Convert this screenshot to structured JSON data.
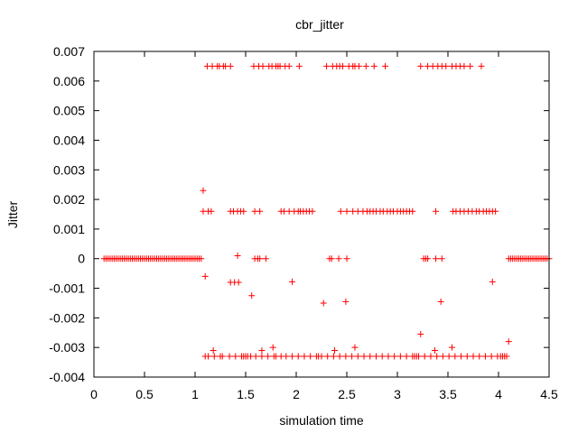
{
  "chart_data": {
    "type": "scatter",
    "title": "cbr_jitter",
    "xlabel": "simulation time",
    "ylabel": "Jitter",
    "xlim": [
      0,
      4.5
    ],
    "ylim": [
      -0.004,
      0.007
    ],
    "xticks": [
      "0",
      "0.5",
      "1",
      "1.5",
      "2",
      "2.5",
      "3",
      "3.5",
      "4",
      "4.5"
    ],
    "xtick_values": [
      0,
      0.5,
      1,
      1.5,
      2,
      2.5,
      3,
      3.5,
      4,
      4.5
    ],
    "yticks": [
      "-0.004",
      "-0.003",
      "-0.002",
      "-0.001",
      "0",
      "0.001",
      "0.002",
      "0.003",
      "0.004",
      "0.005",
      "0.006",
      "0.007"
    ],
    "ytick_values": [
      -0.004,
      -0.003,
      -0.002,
      -0.001,
      0,
      0.001,
      0.002,
      0.003,
      0.004,
      0.005,
      0.006,
      0.007
    ],
    "grid": false,
    "marker": "+",
    "color": "#ff0000",
    "series": [
      {
        "points": [
          [
            0.1,
            0
          ],
          [
            0.12,
            0
          ],
          [
            0.14,
            0
          ],
          [
            0.16,
            0
          ],
          [
            0.18,
            0
          ],
          [
            0.2,
            0
          ],
          [
            0.22,
            0
          ],
          [
            0.24,
            0
          ],
          [
            0.26,
            0
          ],
          [
            0.28,
            0
          ],
          [
            0.3,
            0
          ],
          [
            0.32,
            0
          ],
          [
            0.34,
            0
          ],
          [
            0.36,
            0
          ],
          [
            0.38,
            0
          ],
          [
            0.4,
            0
          ],
          [
            0.42,
            0
          ],
          [
            0.44,
            0
          ],
          [
            0.46,
            0
          ],
          [
            0.48,
            0
          ],
          [
            0.5,
            0
          ],
          [
            0.52,
            0
          ],
          [
            0.54,
            0
          ],
          [
            0.56,
            0
          ],
          [
            0.58,
            0
          ],
          [
            0.6,
            0
          ],
          [
            0.62,
            0
          ],
          [
            0.64,
            0
          ],
          [
            0.66,
            0
          ],
          [
            0.68,
            0
          ],
          [
            0.7,
            0
          ],
          [
            0.72,
            0
          ],
          [
            0.74,
            0
          ],
          [
            0.76,
            0
          ],
          [
            0.78,
            0
          ],
          [
            0.8,
            0
          ],
          [
            0.82,
            0
          ],
          [
            0.84,
            0
          ],
          [
            0.86,
            0
          ],
          [
            0.88,
            0
          ],
          [
            0.9,
            0
          ],
          [
            0.92,
            0
          ],
          [
            0.94,
            0
          ],
          [
            0.96,
            0
          ],
          [
            0.98,
            0
          ],
          [
            1.0,
            0
          ],
          [
            1.02,
            0
          ],
          [
            1.04,
            0
          ],
          [
            1.06,
            0
          ],
          [
            1.08,
            0.0023
          ],
          [
            1.08,
            0.0016
          ],
          [
            1.1,
            -0.0006
          ],
          [
            1.13,
            0.0016
          ],
          [
            1.16,
            0.0016
          ],
          [
            1.12,
            0.0065
          ],
          [
            1.17,
            0.0065
          ],
          [
            1.22,
            0.0065
          ],
          [
            1.24,
            0.0065
          ],
          [
            1.28,
            0.0065
          ],
          [
            1.3,
            0.0065
          ],
          [
            1.35,
            0.0065
          ],
          [
            1.35,
            0.0016
          ],
          [
            1.38,
            0.0016
          ],
          [
            1.42,
            0.0016
          ],
          [
            1.45,
            0.0016
          ],
          [
            1.48,
            0.0016
          ],
          [
            1.42,
            0.0001
          ],
          [
            1.35,
            -0.0008
          ],
          [
            1.39,
            -0.0008
          ],
          [
            1.43,
            -0.0008
          ],
          [
            1.56,
            -0.00125
          ],
          [
            1.59,
            0
          ],
          [
            1.62,
            0
          ],
          [
            1.64,
            0
          ],
          [
            1.7,
            0
          ],
          [
            1.58,
            0.0065
          ],
          [
            1.63,
            0.0065
          ],
          [
            1.67,
            0.0065
          ],
          [
            1.73,
            0.0065
          ],
          [
            1.76,
            0.0065
          ],
          [
            1.8,
            0.0065
          ],
          [
            1.82,
            0.0065
          ],
          [
            1.84,
            0.0065
          ],
          [
            1.89,
            0.0065
          ],
          [
            1.93,
            0.0065
          ],
          [
            2.03,
            0.0065
          ],
          [
            1.59,
            0.0016
          ],
          [
            1.64,
            0.0016
          ],
          [
            1.85,
            0.0016
          ],
          [
            1.88,
            0.0016
          ],
          [
            1.93,
            0.0016
          ],
          [
            1.98,
            0.0016
          ],
          [
            2.02,
            0.0016
          ],
          [
            2.04,
            0.0016
          ],
          [
            2.07,
            0.0016
          ],
          [
            2.1,
            0.0016
          ],
          [
            2.13,
            0.0016
          ],
          [
            2.16,
            0.0016
          ],
          [
            1.96,
            -0.00078
          ],
          [
            2.27,
            -0.0015
          ],
          [
            2.49,
            -0.00145
          ],
          [
            2.3,
            0.0065
          ],
          [
            2.36,
            0.0065
          ],
          [
            2.4,
            0.0065
          ],
          [
            2.43,
            0.0065
          ],
          [
            2.46,
            0.0065
          ],
          [
            2.52,
            0.0065
          ],
          [
            2.56,
            0.0065
          ],
          [
            2.58,
            0.0065
          ],
          [
            2.62,
            0.0065
          ],
          [
            2.69,
            0.0065
          ],
          [
            2.77,
            0.0065
          ],
          [
            2.88,
            0.0065
          ],
          [
            2.33,
            0
          ],
          [
            2.35,
            0
          ],
          [
            2.42,
            0
          ],
          [
            2.5,
            0
          ],
          [
            2.44,
            0.0016
          ],
          [
            2.5,
            0.0016
          ],
          [
            2.56,
            0.0016
          ],
          [
            2.61,
            0.0016
          ],
          [
            2.66,
            0.0016
          ],
          [
            2.7,
            0.0016
          ],
          [
            2.73,
            0.0016
          ],
          [
            2.76,
            0.0016
          ],
          [
            2.79,
            0.0016
          ],
          [
            2.83,
            0.0016
          ],
          [
            2.86,
            0.0016
          ],
          [
            2.9,
            0.0016
          ],
          [
            2.93,
            0.0016
          ],
          [
            2.96,
            0.0016
          ],
          [
            3.0,
            0.0016
          ],
          [
            3.03,
            0.0016
          ],
          [
            3.06,
            0.0016
          ],
          [
            3.09,
            0.0016
          ],
          [
            3.12,
            0.0016
          ],
          [
            3.15,
            0.0016
          ],
          [
            3.23,
            0.0065
          ],
          [
            3.3,
            0.0065
          ],
          [
            3.35,
            0.0065
          ],
          [
            3.4,
            0.0065
          ],
          [
            3.44,
            0.0065
          ],
          [
            3.48,
            0.0065
          ],
          [
            3.54,
            0.0065
          ],
          [
            3.58,
            0.0065
          ],
          [
            3.62,
            0.0065
          ],
          [
            3.66,
            0.0065
          ],
          [
            3.72,
            0.0065
          ],
          [
            3.83,
            0.0065
          ],
          [
            3.26,
            0
          ],
          [
            3.28,
            0
          ],
          [
            3.3,
            0
          ],
          [
            3.38,
            0
          ],
          [
            3.44,
            0
          ],
          [
            3.23,
            -0.00255
          ],
          [
            3.43,
            -0.00145
          ],
          [
            3.54,
            -0.003
          ],
          [
            3.38,
            0.0016
          ],
          [
            3.55,
            0.0016
          ],
          [
            3.58,
            0.0016
          ],
          [
            3.62,
            0.0016
          ],
          [
            3.66,
            0.0016
          ],
          [
            3.7,
            0.0016
          ],
          [
            3.74,
            0.0016
          ],
          [
            3.78,
            0.0016
          ],
          [
            3.81,
            0.0016
          ],
          [
            3.85,
            0.0016
          ],
          [
            3.88,
            0.0016
          ],
          [
            3.91,
            0.0016
          ],
          [
            3.94,
            0.0016
          ],
          [
            3.97,
            0.0016
          ],
          [
            3.94,
            -0.00078
          ],
          [
            4.1,
            -0.0028
          ],
          [
            4.1,
            0
          ],
          [
            4.12,
            0
          ],
          [
            4.14,
            0
          ],
          [
            4.16,
            0
          ],
          [
            4.18,
            0
          ],
          [
            4.2,
            0
          ],
          [
            4.22,
            0
          ],
          [
            4.24,
            0
          ],
          [
            4.26,
            0
          ],
          [
            4.28,
            0
          ],
          [
            4.3,
            0
          ],
          [
            4.32,
            0
          ],
          [
            4.34,
            0
          ],
          [
            4.36,
            0
          ],
          [
            4.38,
            0
          ],
          [
            4.4,
            0
          ],
          [
            4.42,
            0
          ],
          [
            4.44,
            0
          ],
          [
            4.46,
            0
          ],
          [
            4.48,
            0
          ],
          [
            4.5,
            0
          ],
          [
            1.1,
            -0.0033
          ],
          [
            1.13,
            -0.0033
          ],
          [
            1.19,
            -0.0033
          ],
          [
            1.25,
            -0.0033
          ],
          [
            1.27,
            -0.0033
          ],
          [
            1.34,
            -0.0033
          ],
          [
            1.4,
            -0.0033
          ],
          [
            1.46,
            -0.0033
          ],
          [
            1.48,
            -0.0033
          ],
          [
            1.5,
            -0.0033
          ],
          [
            1.52,
            -0.0033
          ],
          [
            1.55,
            -0.0033
          ],
          [
            1.6,
            -0.0033
          ],
          [
            1.66,
            -0.0033
          ],
          [
            1.72,
            -0.0033
          ],
          [
            1.78,
            -0.0033
          ],
          [
            1.8,
            -0.0033
          ],
          [
            1.85,
            -0.0033
          ],
          [
            1.9,
            -0.0033
          ],
          [
            1.96,
            -0.0033
          ],
          [
            2.02,
            -0.0033
          ],
          [
            2.08,
            -0.0033
          ],
          [
            2.14,
            -0.0033
          ],
          [
            2.2,
            -0.0033
          ],
          [
            2.22,
            -0.0033
          ],
          [
            2.25,
            -0.0033
          ],
          [
            2.31,
            -0.0033
          ],
          [
            2.37,
            -0.0033
          ],
          [
            2.43,
            -0.0033
          ],
          [
            2.49,
            -0.0033
          ],
          [
            2.55,
            -0.0033
          ],
          [
            2.61,
            -0.0033
          ],
          [
            2.67,
            -0.0033
          ],
          [
            2.73,
            -0.0033
          ],
          [
            2.79,
            -0.0033
          ],
          [
            2.85,
            -0.0033
          ],
          [
            2.91,
            -0.0033
          ],
          [
            2.97,
            -0.0033
          ],
          [
            3.03,
            -0.0033
          ],
          [
            3.09,
            -0.0033
          ],
          [
            3.15,
            -0.0033
          ],
          [
            3.17,
            -0.0033
          ],
          [
            3.19,
            -0.0033
          ],
          [
            3.21,
            -0.0033
          ],
          [
            3.27,
            -0.0033
          ],
          [
            3.33,
            -0.0033
          ],
          [
            3.39,
            -0.0033
          ],
          [
            3.45,
            -0.0033
          ],
          [
            3.51,
            -0.0033
          ],
          [
            3.57,
            -0.0033
          ],
          [
            3.63,
            -0.0033
          ],
          [
            3.69,
            -0.0033
          ],
          [
            3.75,
            -0.0033
          ],
          [
            3.81,
            -0.0033
          ],
          [
            3.87,
            -0.0033
          ],
          [
            3.93,
            -0.0033
          ],
          [
            3.99,
            -0.0033
          ],
          [
            4.02,
            -0.0033
          ],
          [
            4.04,
            -0.0033
          ],
          [
            4.06,
            -0.0033
          ],
          [
            4.08,
            -0.0033
          ],
          [
            1.18,
            -0.0031
          ],
          [
            1.66,
            -0.0031
          ],
          [
            1.77,
            -0.003
          ],
          [
            2.38,
            -0.0031
          ],
          [
            2.58,
            -0.003
          ],
          [
            3.37,
            -0.0031
          ]
        ]
      }
    ]
  }
}
